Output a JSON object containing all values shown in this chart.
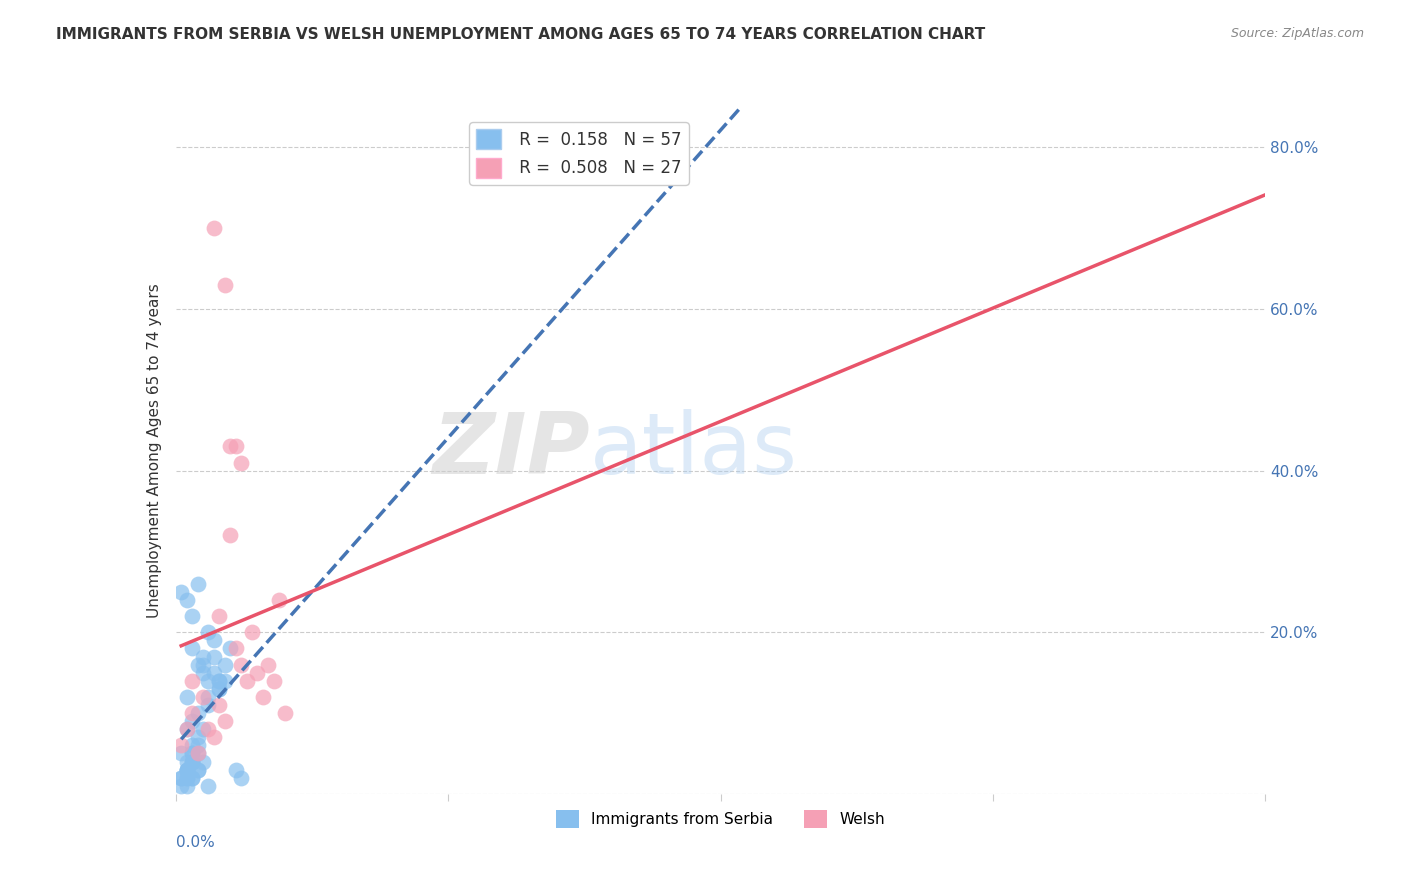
{
  "title": "IMMIGRANTS FROM SERBIA VS WELSH UNEMPLOYMENT AMONG AGES 65 TO 74 YEARS CORRELATION CHART",
  "source": "Source: ZipAtlas.com",
  "ylabel": "Unemployment Among Ages 65 to 74 years",
  "xlim": [
    0.0,
    0.2
  ],
  "ylim": [
    0.0,
    0.85
  ],
  "yticks": [
    0.0,
    0.2,
    0.4,
    0.6,
    0.8
  ],
  "ytick_labels": [
    "",
    "20.0%",
    "40.0%",
    "60.0%",
    "80.0%"
  ],
  "xticks": [
    0.0,
    0.05,
    0.1,
    0.15,
    0.2
  ],
  "serbia_color": "#87BFEE",
  "welsh_color": "#F5A0B5",
  "serbia_line_color": "#4575b4",
  "welsh_line_color": "#e8546a",
  "serbia_R": 0.158,
  "serbia_N": 57,
  "welsh_R": 0.508,
  "welsh_N": 27,
  "serbia_x": [
    0.002,
    0.001,
    0.003,
    0.001,
    0.002,
    0.003,
    0.004,
    0.002,
    0.001,
    0.003,
    0.002,
    0.005,
    0.004,
    0.003,
    0.006,
    0.002,
    0.008,
    0.003,
    0.002,
    0.001,
    0.004,
    0.002,
    0.003,
    0.004,
    0.005,
    0.003,
    0.002,
    0.001,
    0.003,
    0.002,
    0.004,
    0.005,
    0.006,
    0.007,
    0.004,
    0.003,
    0.002,
    0.008,
    0.006,
    0.005,
    0.003,
    0.002,
    0.007,
    0.009,
    0.004,
    0.003,
    0.008,
    0.006,
    0.01,
    0.005,
    0.004,
    0.007,
    0.009,
    0.012,
    0.008,
    0.011,
    0.006
  ],
  "serbia_y": [
    0.03,
    0.05,
    0.04,
    0.02,
    0.08,
    0.06,
    0.1,
    0.04,
    0.25,
    0.22,
    0.12,
    0.15,
    0.07,
    0.09,
    0.14,
    0.03,
    0.13,
    0.05,
    0.02,
    0.01,
    0.26,
    0.24,
    0.18,
    0.16,
    0.08,
    0.04,
    0.03,
    0.02,
    0.05,
    0.03,
    0.06,
    0.17,
    0.12,
    0.15,
    0.03,
    0.02,
    0.01,
    0.14,
    0.11,
    0.16,
    0.04,
    0.02,
    0.19,
    0.16,
    0.03,
    0.02,
    0.14,
    0.2,
    0.18,
    0.04,
    0.05,
    0.17,
    0.14,
    0.02,
    0.13,
    0.03,
    0.01
  ],
  "welsh_x": [
    0.001,
    0.002,
    0.003,
    0.004,
    0.003,
    0.005,
    0.006,
    0.007,
    0.008,
    0.009,
    0.01,
    0.011,
    0.012,
    0.009,
    0.01,
    0.008,
    0.011,
    0.013,
    0.007,
    0.012,
    0.014,
    0.015,
    0.016,
    0.017,
    0.018,
    0.019,
    0.02
  ],
  "welsh_y": [
    0.06,
    0.08,
    0.1,
    0.05,
    0.14,
    0.12,
    0.08,
    0.07,
    0.11,
    0.09,
    0.32,
    0.43,
    0.16,
    0.63,
    0.43,
    0.22,
    0.18,
    0.14,
    0.7,
    0.41,
    0.2,
    0.15,
    0.12,
    0.16,
    0.14,
    0.24,
    0.1
  ],
  "watermark_zip": "ZIP",
  "watermark_atlas": "atlas",
  "background_color": "#ffffff",
  "grid_color": "#cccccc"
}
